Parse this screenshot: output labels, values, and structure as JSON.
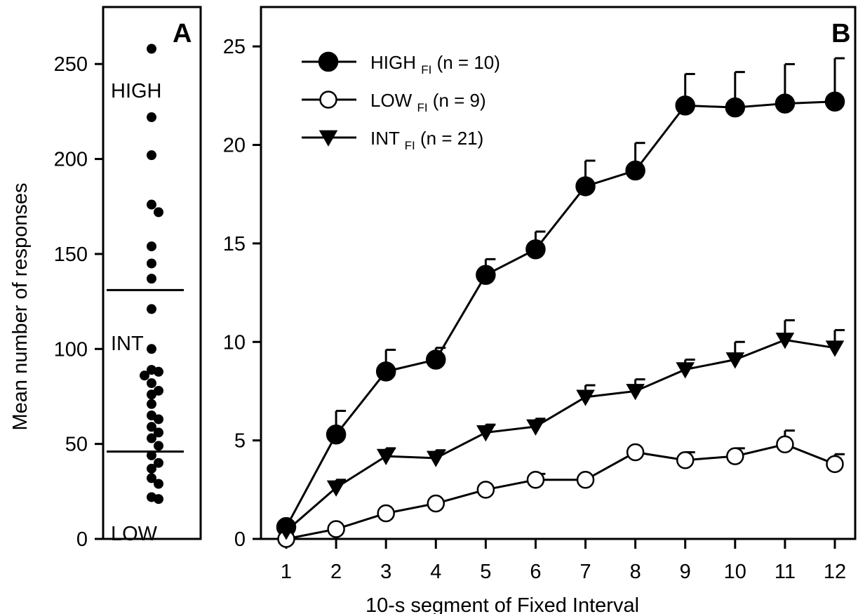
{
  "chart_data": [
    {
      "panel": "A",
      "type": "scatter",
      "ylabel": "Mean number of responses",
      "ylim": [
        0,
        280
      ],
      "yticks": [
        0,
        50,
        100,
        150,
        200,
        250
      ],
      "group_labels": [
        {
          "text": "HIGH",
          "y": 236
        },
        {
          "text": "INT",
          "y": 103
        },
        {
          "text": "LOW",
          "y": 3
        }
      ],
      "cutoff_lines": [
        131,
        46
      ],
      "values": [
        258,
        222,
        202,
        176,
        172,
        154,
        145,
        137,
        121,
        100,
        89,
        88,
        86,
        82,
        78,
        76,
        71,
        65,
        63,
        59,
        56,
        53,
        49,
        44,
        40,
        37,
        32,
        29,
        22,
        21
      ]
    },
    {
      "panel": "B",
      "type": "line",
      "xlabel": "10-s segment of Fixed Interval",
      "ylabel": "",
      "x": [
        1,
        2,
        3,
        4,
        5,
        6,
        7,
        8,
        9,
        10,
        11,
        12
      ],
      "xlim": [
        0.5,
        12.5
      ],
      "ylim": [
        0,
        27
      ],
      "yticks": [
        0,
        5,
        10,
        15,
        20,
        25
      ],
      "legend_position": "top-left",
      "series": [
        {
          "name": "HIGH",
          "sub": "FI",
          "n_label": "(n = 10)",
          "marker": "circle-filled",
          "values": [
            0.6,
            5.3,
            8.5,
            9.1,
            13.4,
            14.7,
            17.9,
            18.7,
            22.0,
            21.9,
            22.1,
            22.2
          ],
          "errors": [
            0.0,
            1.2,
            1.1,
            0.6,
            0.8,
            0.9,
            1.3,
            1.4,
            1.6,
            1.8,
            2.0,
            2.2
          ]
        },
        {
          "name": "LOW",
          "sub": "FI",
          "n_label": "(n = 9)",
          "marker": "circle-open",
          "values": [
            0.0,
            0.5,
            1.3,
            1.8,
            2.5,
            3.0,
            3.0,
            4.4,
            4.0,
            4.2,
            4.8,
            3.8
          ],
          "errors": [
            0.0,
            0.0,
            0.0,
            0.0,
            0.0,
            0.3,
            0.0,
            0.0,
            0.4,
            0.4,
            0.7,
            0.5
          ]
        },
        {
          "name": "INT",
          "sub": "FI",
          "n_label": "(n = 21)",
          "marker": "triangle-down-filled",
          "values": [
            0.4,
            2.6,
            4.2,
            4.1,
            5.4,
            5.7,
            7.2,
            7.5,
            8.6,
            9.1,
            10.1,
            9.7
          ],
          "errors": [
            0.0,
            0.4,
            0.4,
            0.4,
            0.4,
            0.4,
            0.6,
            0.6,
            0.5,
            0.9,
            1.0,
            0.9
          ]
        }
      ]
    }
  ]
}
